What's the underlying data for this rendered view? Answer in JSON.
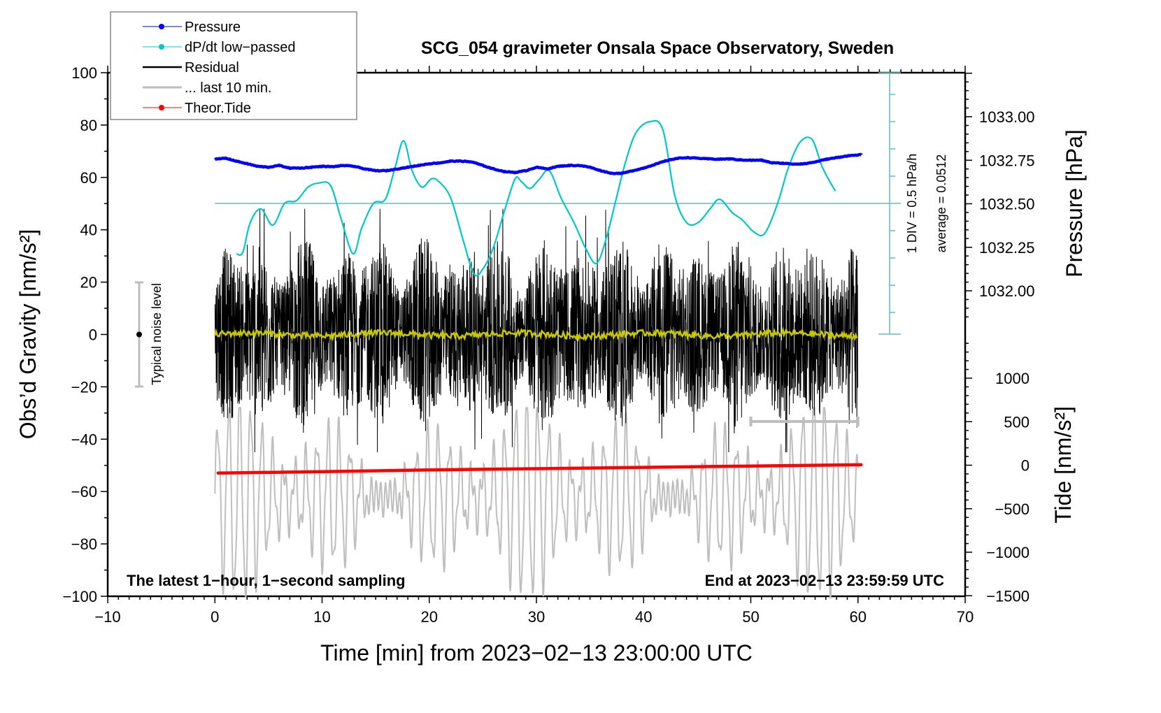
{
  "chart_data": {
    "type": "line",
    "title": "SCG_054 gravimeter Onsala Space Observatory, Sweden",
    "xlabel": "Time [min] from 2023−02−13 23:00:00 UTC",
    "ylabel_left": "Obs’d Gravity [nm/s²]",
    "ylabel_right_upper": "Pressure [hPa]",
    "ylabel_right_lower": "Tide [nm/s²]",
    "xlim": [
      -10,
      70
    ],
    "ylim": [
      -100,
      100
    ],
    "pressure_lim": [
      1031.25,
      1033.25
    ],
    "tide_lim": [
      -1500,
      1500
    ],
    "x_ticks": [
      "−10",
      "0",
      "10",
      "20",
      "30",
      "40",
      "50",
      "60",
      "70"
    ],
    "x_tick_values": [
      -10,
      0,
      10,
      20,
      30,
      40,
      50,
      60,
      70
    ],
    "y_ticks": [
      "−100",
      "−80",
      "−60",
      "−40",
      "−20",
      "0",
      "20",
      "40",
      "60",
      "80",
      "100"
    ],
    "y_tick_values": [
      -100,
      -80,
      -60,
      -40,
      -20,
      0,
      20,
      40,
      60,
      80,
      100
    ],
    "pressure_ticks": [
      "1032.00",
      "1032.25",
      "1032.50",
      "1032.75",
      "1033.00"
    ],
    "pressure_tick_values": [
      1032.0,
      1032.25,
      1032.5,
      1032.75,
      1033.0
    ],
    "tide_ticks": [
      "−1500",
      "−1000",
      "−500",
      "0",
      "500",
      "1000"
    ],
    "tide_tick_values": [
      -1500,
      -1000,
      -500,
      0,
      500,
      1000
    ],
    "legend": {
      "placement": "top-left",
      "entries": [
        {
          "label": "Pressure",
          "color": "#0000ff",
          "marker": true
        },
        {
          "label": "dP/dt low−passed",
          "color": "#00c8c8",
          "marker": true
        },
        {
          "label": "Residual",
          "color": "#000000",
          "marker": false
        },
        {
          "label": "... last 10 min.",
          "color": "#bebebe",
          "marker": false
        },
        {
          "label": "Theor.Tide",
          "color": "#ff0000",
          "marker": true
        }
      ]
    },
    "series": [
      {
        "name": "Pressure",
        "axis": "pressure_hPa",
        "color": "#0000ff",
        "x": [
          0,
          1,
          2,
          3,
          4,
          5,
          6,
          7,
          8,
          9,
          10,
          11,
          12,
          13,
          14,
          15,
          16,
          17,
          18,
          19,
          20,
          21,
          22,
          23,
          24,
          25,
          26,
          27,
          28,
          29,
          30,
          31,
          32,
          33,
          34,
          35,
          36,
          37,
          38,
          39,
          40,
          41,
          42,
          43,
          44,
          45,
          46,
          47,
          48,
          49,
          50,
          51,
          52,
          53,
          54,
          55,
          56,
          57,
          58,
          59,
          60.3
        ],
        "values": [
          1032.755,
          1032.762,
          1032.745,
          1032.73,
          1032.715,
          1032.71,
          1032.72,
          1032.705,
          1032.705,
          1032.71,
          1032.715,
          1032.713,
          1032.72,
          1032.715,
          1032.7,
          1032.69,
          1032.69,
          1032.7,
          1032.71,
          1032.72,
          1032.73,
          1032.735,
          1032.745,
          1032.745,
          1032.74,
          1032.72,
          1032.7,
          1032.685,
          1032.68,
          1032.69,
          1032.71,
          1032.7,
          1032.715,
          1032.72,
          1032.72,
          1032.71,
          1032.69,
          1032.675,
          1032.675,
          1032.69,
          1032.705,
          1032.725,
          1032.745,
          1032.76,
          1032.765,
          1032.762,
          1032.758,
          1032.756,
          1032.758,
          1032.752,
          1032.75,
          1032.75,
          1032.735,
          1032.733,
          1032.728,
          1032.73,
          1032.74,
          1032.755,
          1032.765,
          1032.775,
          1032.782
        ]
      },
      {
        "name": "dP/dt low-passed",
        "axis": "dpdt_div",
        "unit_per_div": "0.5 hPa/h",
        "color": "#00c8c8",
        "x": [
          2,
          2.6,
          3.3,
          4.3,
          5.4,
          6.5,
          7.6,
          8.7,
          9.7,
          10.8,
          11.8,
          12.9,
          13.7,
          14.8,
          15.9,
          16.8,
          17.6,
          18.4,
          19.3,
          20.2,
          20.9,
          22.0,
          23.2,
          24.2,
          25.1,
          26.0,
          27.0,
          28.0,
          28.6,
          29.4,
          30.3,
          31.2,
          32.3,
          33.5,
          34.6,
          35.6,
          36.5,
          37.4,
          38.3,
          39.3,
          40.6,
          41.8,
          42.9,
          44.0,
          45.1,
          46.2,
          47.1,
          48.3,
          49.2,
          50.3,
          51.3,
          52.5,
          53.5,
          54.6,
          55.7,
          56.6,
          57.3,
          57.9
        ],
        "values": [
          -1.85,
          -1.8,
          -0.7,
          -0.2,
          -0.8,
          0.0,
          0.1,
          0.6,
          0.75,
          0.65,
          -0.6,
          -1.85,
          -0.9,
          0.0,
          0.15,
          1.3,
          2.3,
          1.2,
          0.6,
          0.9,
          0.8,
          0.2,
          -1.4,
          -2.6,
          -2.35,
          -1.6,
          -0.3,
          0.9,
          0.8,
          0.55,
          0.9,
          1.2,
          0.2,
          -0.7,
          -1.65,
          -2.2,
          -1.3,
          0.1,
          1.5,
          2.6,
          3.0,
          2.7,
          0.3,
          -0.7,
          -0.7,
          -0.2,
          0.15,
          -0.35,
          -0.6,
          -1.05,
          -1.1,
          0.0,
          1.3,
          2.25,
          2.35,
          1.4,
          0.85,
          0.45
        ]
      },
      {
        "name": "Residual",
        "axis": "gravity",
        "color": "#000000",
        "x_range": [
          0,
          60
        ],
        "approx_envelope_nm_s2": [
          -45,
          45
        ],
        "description": "1-second sampled residual, dense noise roughly ±25–45 nm/s²"
      },
      {
        "name": "Residual smoothed",
        "axis": "gravity",
        "color": "#c8c800",
        "x_range": [
          0,
          60
        ],
        "approx_level": 0
      },
      {
        "name": "... last 10 min.",
        "axis": "gravity",
        "color": "#bebebe",
        "x_range": [
          0,
          60
        ],
        "approx_envelope_nm_s2": [
          -100,
          -28
        ]
      },
      {
        "name": "Theor.Tide",
        "axis": "tide_nm_s2",
        "color": "#ff0000",
        "x": [
          0.3,
          10,
          20,
          30,
          40,
          50,
          60.3
        ],
        "values": [
          -90,
          -75,
          -55,
          -40,
          -25,
          -10,
          5
        ]
      }
    ],
    "annotations": {
      "bottom_left": "The latest 1−hour, 1−second sampling",
      "bottom_right": "End at 2023−02−13 23:59:59 UTC",
      "noise_label": "Typical noise level",
      "noise_bar_range": [
        -20,
        20
      ],
      "dpdt_scale": "1 DIV = 0.5 hPa/h",
      "dpdt_average": "average = 0.0512",
      "last10_bracket_range_min": [
        50,
        60
      ]
    },
    "grid": false
  }
}
